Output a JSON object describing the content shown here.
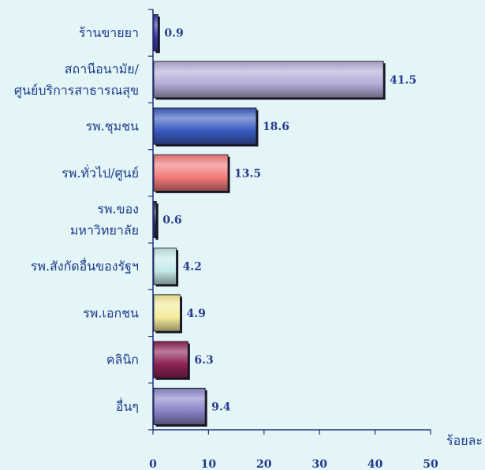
{
  "chart_data": {
    "type": "bar",
    "orientation": "horizontal",
    "title": "",
    "xlabel": "ร้อยละ",
    "ylabel": "",
    "categories": [
      "ร้านขายยา",
      "สถานีอนามัย/\nศูนย์บริการสาธารณสุข",
      "รพ.ชุมชน",
      "รพ.ทั่วไป/ศูนย์",
      "รพ.ของ\nมหาวิทยาลัย",
      "รพ.สังกัดอื่นของรัฐฯ",
      "รพ.เอกชน",
      "คลินิก",
      "อื่นๆ"
    ],
    "values": [
      0.9,
      41.5,
      18.6,
      13.5,
      0.6,
      4.2,
      4.9,
      6.3,
      9.4
    ],
    "bar_colors": [
      "#3A3AB0",
      "#B4ACD8",
      "#3A5CC0",
      "#F27A7A",
      "#2A2A62",
      "#C6EAEA",
      "#F4EC9C",
      "#8E2256",
      "#8A84C8"
    ],
    "xlim": [
      0,
      50
    ],
    "x_ticks": [
      0,
      10,
      20,
      30,
      40,
      50
    ],
    "data_labels": true,
    "grid": false,
    "legend": "none"
  },
  "colors": {
    "background": "#E3F5F7",
    "axis": "#1F2E78",
    "category_text": "#1E3A8A",
    "value_text": "#2A3A8C"
  }
}
